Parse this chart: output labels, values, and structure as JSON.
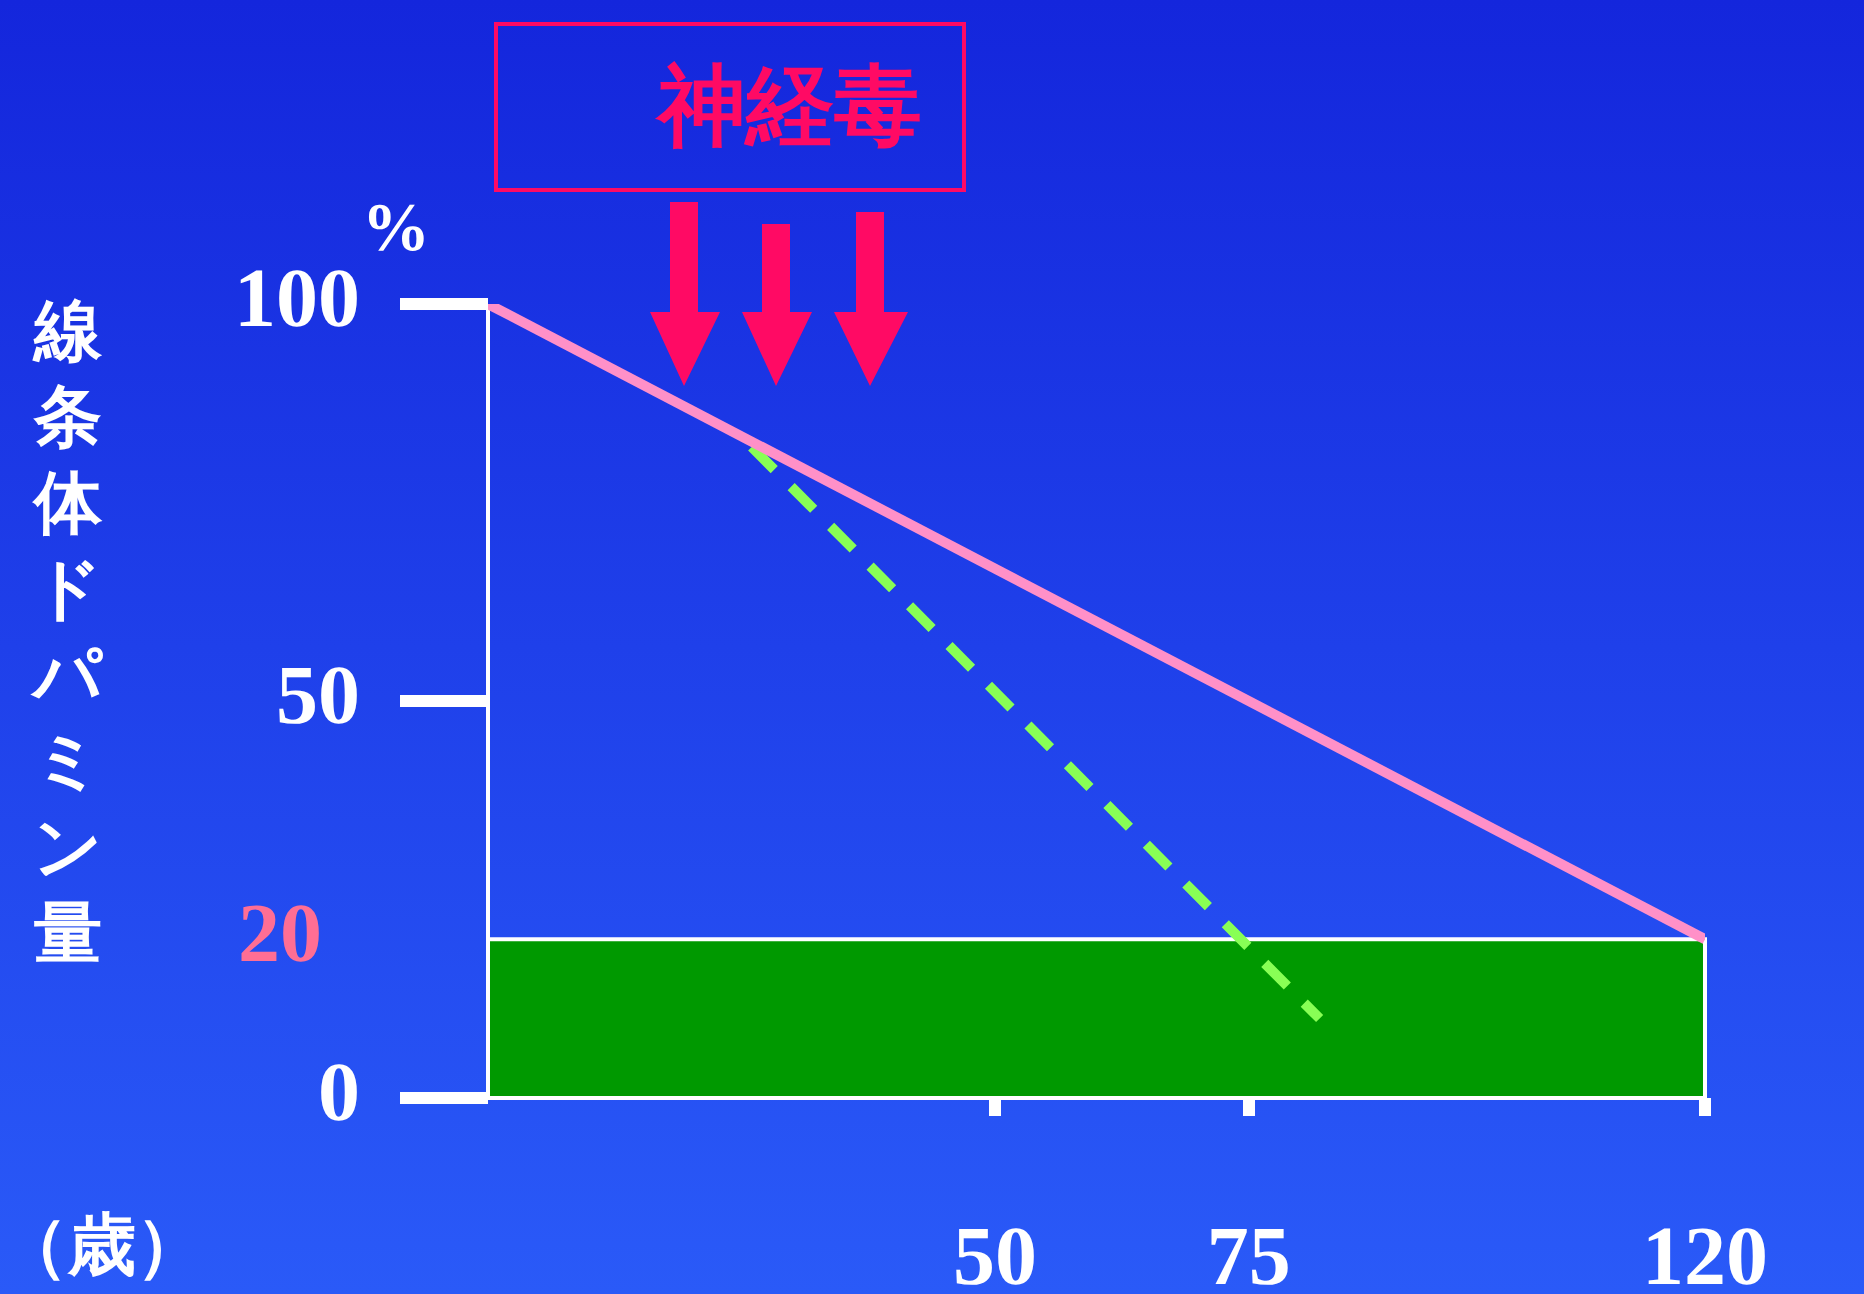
{
  "chart_data": {
    "type": "line",
    "title": "神経毒",
    "ylabel": "線条体ドパミン量",
    "xlabel": "（歳）",
    "annotations": [
      "%"
    ],
    "x": [
      0,
      120
    ],
    "xlim": [
      0,
      120
    ],
    "xticks": [
      50,
      75,
      120
    ],
    "ylim": [
      0,
      100
    ],
    "yticks": [
      0,
      50,
      100
    ],
    "series": [
      {
        "color": "#ff90c8",
        "values": [
          100,
          20
        ]
      },
      {
        "x": [
          26,
          82
        ],
        "values": [
          82,
          10
        ],
        "color": "#88ff55",
        "line_style": "dashed"
      }
    ],
    "bands": [
      {
        "axis": "y",
        "from": 0,
        "to": 20,
        "label": "20",
        "color": "#009900"
      }
    ]
  }
}
